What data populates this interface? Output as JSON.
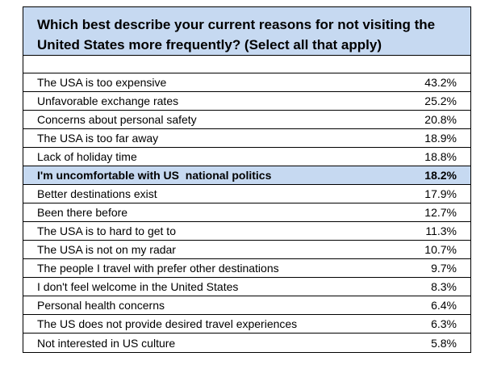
{
  "question": {
    "line1": "Which best describe your current reasons for not visiting the",
    "line2": "United States more frequently? (Select all that apply)"
  },
  "colors": {
    "header_fill": "#c6d9f1",
    "highlight_fill": "#c6d9f1",
    "border": "#000000"
  },
  "rows": [
    {
      "label": "The USA is too expensive",
      "value": "43.2%"
    },
    {
      "label": "Unfavorable exchange rates",
      "value": "25.2%"
    },
    {
      "label": "Concerns about personal safety",
      "value": "20.8%"
    },
    {
      "label": "The USA is too far away",
      "value": "18.9%"
    },
    {
      "label": "Lack of holiday time",
      "value": "18.8%"
    },
    {
      "label": "I'm uncomfortable with US  national politics",
      "value": "18.2%",
      "highlighted": true
    },
    {
      "label": "Better destinations exist",
      "value": "17.9%"
    },
    {
      "label": "Been there before",
      "value": "12.7%"
    },
    {
      "label": "The USA is to hard to get to",
      "value": "11.3%"
    },
    {
      "label": "The USA is not on my radar",
      "value": "10.7%"
    },
    {
      "label": "The people I travel with prefer other destinations",
      "value": "9.7%"
    },
    {
      "label": "I don't feel welcome in the United States",
      "value": "8.3%"
    },
    {
      "label": "Personal health concerns",
      "value": "6.4%"
    },
    {
      "label": "The US does not provide desired travel experiences",
      "value": "6.3%"
    },
    {
      "label": "Not interested in US culture",
      "value": "5.8%"
    }
  ]
}
